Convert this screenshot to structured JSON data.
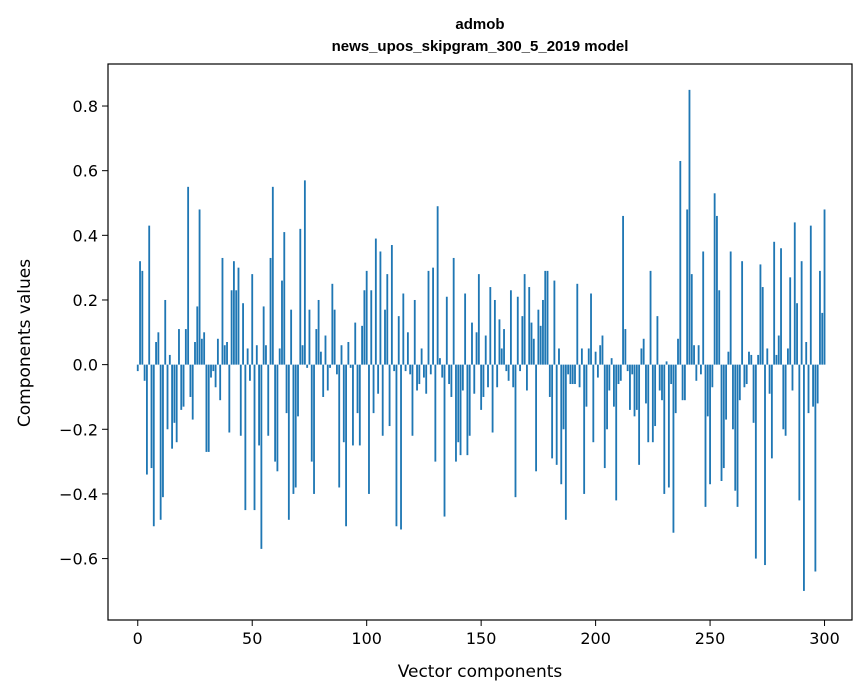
{
  "chart_data": {
    "type": "bar",
    "title_line1": "admob",
    "title_line2": "news_upos_skipgram_300_5_2019 model",
    "xlabel": "Vector components",
    "ylabel": "Components values",
    "xlim": [
      -13,
      312
    ],
    "ylim": [
      -0.79,
      0.93
    ],
    "xticks": [
      0,
      50,
      100,
      150,
      200,
      250,
      300
    ],
    "xtick_labels": [
      "0",
      "50",
      "100",
      "150",
      "200",
      "250",
      "300"
    ],
    "yticks": [
      -0.6,
      -0.4,
      -0.2,
      0.0,
      0.2,
      0.4,
      0.6,
      0.8
    ],
    "ytick_labels": [
      "−0.6",
      "−0.4",
      "−0.2",
      "0.0",
      "0.2",
      "0.4",
      "0.6",
      "0.8"
    ],
    "bar_color": "#1f77b4",
    "grid": false,
    "values": [
      -0.02,
      0.32,
      0.29,
      -0.05,
      -0.34,
      0.43,
      -0.32,
      -0.5,
      0.07,
      0.1,
      -0.48,
      -0.41,
      0.2,
      -0.2,
      0.03,
      -0.26,
      -0.18,
      -0.24,
      0.11,
      -0.14,
      -0.13,
      0.11,
      0.55,
      -0.1,
      -0.17,
      0.07,
      0.18,
      0.48,
      0.08,
      0.1,
      -0.27,
      -0.27,
      -0.04,
      -0.02,
      -0.07,
      0.08,
      -0.11,
      0.33,
      0.06,
      0.07,
      -0.21,
      0.23,
      0.32,
      0.23,
      0.3,
      -0.22,
      0.19,
      -0.45,
      0.05,
      -0.05,
      0.28,
      -0.45,
      0.06,
      -0.25,
      -0.57,
      0.18,
      0.06,
      -0.22,
      0.33,
      0.55,
      -0.3,
      -0.33,
      0.05,
      0.26,
      0.41,
      -0.15,
      -0.48,
      0.17,
      -0.4,
      -0.38,
      -0.16,
      0.42,
      0.06,
      0.57,
      -0.01,
      0.17,
      -0.3,
      -0.4,
      0.11,
      0.2,
      0.04,
      -0.1,
      0.09,
      -0.08,
      -0.01,
      0.25,
      0.17,
      -0.03,
      -0.38,
      0.06,
      -0.24,
      -0.5,
      0.07,
      -0.01,
      -0.25,
      0.13,
      -0.15,
      -0.25,
      0.12,
      0.23,
      0.29,
      -0.4,
      0.23,
      -0.15,
      0.39,
      -0.09,
      0.35,
      -0.22,
      0.17,
      0.28,
      -0.19,
      0.37,
      -0.02,
      -0.5,
      0.15,
      -0.51,
      0.22,
      -0.02,
      0.1,
      -0.03,
      -0.22,
      0.2,
      -0.08,
      -0.06,
      0.05,
      -0.04,
      -0.09,
      0.29,
      -0.03,
      0.3,
      -0.3,
      0.49,
      0.02,
      -0.04,
      -0.47,
      0.21,
      -0.06,
      -0.1,
      0.33,
      -0.3,
      -0.24,
      -0.28,
      -0.08,
      0.22,
      -0.28,
      -0.22,
      0.13,
      -0.09,
      0.1,
      0.28,
      -0.14,
      -0.1,
      0.09,
      -0.07,
      0.24,
      -0.21,
      0.2,
      -0.07,
      0.14,
      0.05,
      0.11,
      -0.02,
      -0.05,
      0.23,
      -0.07,
      -0.41,
      0.21,
      -0.02,
      0.15,
      0.28,
      -0.08,
      0.24,
      0.13,
      0.08,
      -0.33,
      0.17,
      0.12,
      0.2,
      0.29,
      0.29,
      -0.1,
      -0.29,
      0.26,
      -0.31,
      0.05,
      -0.37,
      -0.2,
      -0.48,
      -0.03,
      -0.06,
      -0.06,
      -0.06,
      0.25,
      -0.07,
      0.05,
      -0.4,
      -0.13,
      0.05,
      0.22,
      -0.24,
      0.04,
      -0.04,
      0.06,
      0.09,
      -0.32,
      -0.2,
      -0.08,
      0.02,
      -0.13,
      -0.42,
      -0.06,
      -0.05,
      0.46,
      0.11,
      -0.02,
      -0.14,
      -0.03,
      -0.16,
      -0.14,
      -0.31,
      0.05,
      0.08,
      -0.12,
      -0.24,
      0.29,
      -0.24,
      -0.19,
      0.15,
      -0.08,
      -0.11,
      -0.4,
      0.01,
      -0.38,
      -0.06,
      -0.52,
      -0.15,
      0.08,
      0.63,
      -0.11,
      -0.11,
      0.48,
      0.85,
      0.28,
      0.06,
      -0.05,
      0.06,
      -0.03,
      0.35,
      -0.44,
      -0.16,
      -0.37,
      -0.07,
      0.53,
      0.46,
      0.23,
      -0.36,
      -0.32,
      -0.17,
      0.04,
      0.35,
      -0.2,
      -0.39,
      -0.44,
      -0.11,
      0.32,
      -0.07,
      -0.06,
      0.04,
      0.03,
      -0.18,
      -0.6,
      0.03,
      0.31,
      0.24,
      -0.62,
      0.05,
      -0.09,
      -0.29,
      0.38,
      0.03,
      0.09,
      0.36,
      -0.2,
      -0.22,
      0.05,
      0.27,
      -0.08,
      0.44,
      0.19,
      -0.42,
      0.32,
      -0.7,
      0.07,
      -0.15,
      0.43,
      -0.13,
      -0.64,
      -0.12,
      0.29,
      0.16,
      0.48
    ]
  }
}
